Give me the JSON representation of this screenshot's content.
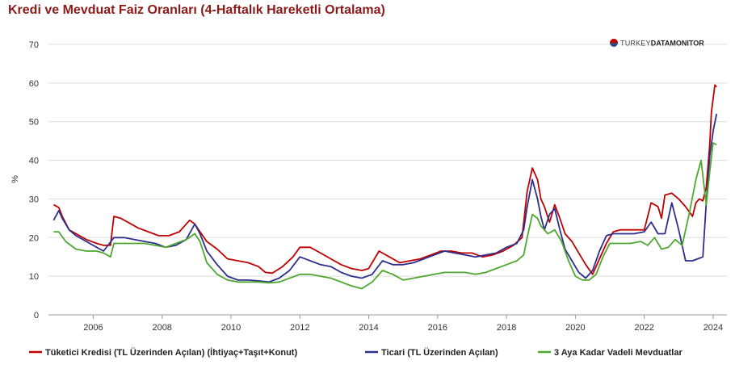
{
  "chart_data": {
    "type": "line",
    "title": "Kredi ve Mevduat Faiz Oranları (4-Haftalık Hareketli Ortalama)",
    "ylabel": "%",
    "xlabel": "",
    "xlim": [
      2004.7,
      2024.4
    ],
    "ylim": [
      0,
      70
    ],
    "xticks": [
      2006,
      2008,
      2010,
      2012,
      2014,
      2016,
      2018,
      2020,
      2022,
      2024
    ],
    "yticks": [
      0,
      10,
      20,
      30,
      40,
      50,
      60,
      70
    ],
    "grid": "horizontal",
    "legend_position": "bottom",
    "series": [
      {
        "name": "Tüketici Kredisi (TL Üzerinden Açılan) (İhtiyaç+Taşıt+Konut)",
        "color": "#c00000",
        "x": [
          2004.85,
          2005.0,
          2005.1,
          2005.3,
          2005.5,
          2005.8,
          2006.1,
          2006.3,
          2006.5,
          2006.6,
          2006.8,
          2007.0,
          2007.3,
          2007.6,
          2007.9,
          2008.2,
          2008.5,
          2008.8,
          2008.95,
          2009.1,
          2009.3,
          2009.6,
          2009.9,
          2010.2,
          2010.5,
          2010.8,
          2011.0,
          2011.2,
          2011.5,
          2011.8,
          2012.0,
          2012.3,
          2012.6,
          2012.9,
          2013.2,
          2013.5,
          2013.8,
          2014.0,
          2014.3,
          2014.6,
          2014.9,
          2015.2,
          2015.5,
          2015.8,
          2016.1,
          2016.4,
          2016.7,
          2017.0,
          2017.3,
          2017.6,
          2017.9,
          2018.2,
          2018.45,
          2018.6,
          2018.75,
          2018.9,
          2019.0,
          2019.1,
          2019.25,
          2019.4,
          2019.55,
          2019.7,
          2019.9,
          2020.1,
          2020.3,
          2020.5,
          2020.7,
          2020.9,
          2021.1,
          2021.3,
          2021.6,
          2021.9,
          2022.0,
          2022.2,
          2022.4,
          2022.5,
          2022.6,
          2022.8,
          2023.0,
          2023.2,
          2023.4,
          2023.5,
          2023.6,
          2023.7,
          2023.8,
          2023.9,
          2023.95,
          2024.05,
          2024.1
        ],
        "values": [
          28.5,
          27.8,
          25.5,
          22.0,
          21.0,
          19.5,
          18.5,
          18.0,
          18.0,
          25.5,
          25.0,
          24.0,
          22.5,
          21.5,
          20.5,
          20.5,
          21.5,
          24.5,
          23.5,
          21.5,
          19.0,
          17.0,
          14.5,
          14.0,
          13.5,
          12.5,
          11.0,
          10.8,
          12.5,
          15.0,
          17.5,
          17.5,
          16.0,
          14.5,
          13.0,
          12.0,
          11.5,
          12.0,
          16.5,
          15.0,
          13.5,
          14.0,
          14.5,
          15.5,
          16.5,
          16.5,
          16.0,
          16.0,
          15.0,
          15.5,
          16.5,
          18.0,
          20.0,
          32.0,
          38.0,
          35.0,
          30.0,
          28.0,
          24.0,
          28.5,
          25.0,
          21.0,
          19.0,
          16.0,
          13.0,
          10.5,
          14.5,
          18.5,
          21.5,
          22.0,
          22.0,
          22.0,
          22.0,
          29.0,
          28.0,
          25.0,
          31.0,
          31.5,
          30.0,
          28.0,
          25.5,
          29.0,
          30.0,
          29.5,
          33.0,
          44.0,
          52.5,
          59.5,
          59.0
        ]
      },
      {
        "name": "Ticari (TL Üzerinden Açılan)",
        "color": "#2e2e8f",
        "x": [
          2004.85,
          2005.0,
          2005.1,
          2005.3,
          2005.5,
          2005.8,
          2006.1,
          2006.3,
          2006.6,
          2006.9,
          2007.2,
          2007.5,
          2007.8,
          2008.1,
          2008.4,
          2008.7,
          2008.95,
          2009.1,
          2009.3,
          2009.6,
          2009.9,
          2010.2,
          2010.5,
          2010.8,
          2011.1,
          2011.4,
          2011.7,
          2012.0,
          2012.3,
          2012.6,
          2012.9,
          2013.2,
          2013.5,
          2013.8,
          2014.1,
          2014.4,
          2014.7,
          2015.0,
          2015.3,
          2015.6,
          2015.9,
          2016.2,
          2016.5,
          2016.8,
          2017.1,
          2017.4,
          2017.7,
          2018.0,
          2018.3,
          2018.5,
          2018.6,
          2018.75,
          2018.9,
          2019.0,
          2019.1,
          2019.25,
          2019.4,
          2019.55,
          2019.7,
          2019.9,
          2020.1,
          2020.3,
          2020.5,
          2020.7,
          2020.9,
          2021.1,
          2021.4,
          2021.7,
          2022.0,
          2022.2,
          2022.4,
          2022.6,
          2022.8,
          2023.0,
          2023.2,
          2023.4,
          2023.55,
          2023.7,
          2023.8,
          2023.9,
          2024.0,
          2024.1
        ],
        "values": [
          24.5,
          27.0,
          25.0,
          22.0,
          20.5,
          19.0,
          17.5,
          16.5,
          20.0,
          20.0,
          19.5,
          19.0,
          18.5,
          17.5,
          18.0,
          19.5,
          23.5,
          21.0,
          16.5,
          13.0,
          10.0,
          9.0,
          9.0,
          8.8,
          8.5,
          9.5,
          11.5,
          15.0,
          14.0,
          13.0,
          12.5,
          11.0,
          10.0,
          9.5,
          10.5,
          14.0,
          13.0,
          13.0,
          13.5,
          14.5,
          15.5,
          16.5,
          16.0,
          15.5,
          15.0,
          15.5,
          16.0,
          17.5,
          18.5,
          22.0,
          28.0,
          35.0,
          30.0,
          25.5,
          22.0,
          26.0,
          27.5,
          22.0,
          17.0,
          14.0,
          11.0,
          9.5,
          11.5,
          16.5,
          20.5,
          21.0,
          21.0,
          21.0,
          21.5,
          24.0,
          21.0,
          21.0,
          29.0,
          22.0,
          14.0,
          14.0,
          14.5,
          15.0,
          29.0,
          41.0,
          47.5,
          52.0
        ]
      },
      {
        "name": "3 Aya Kadar Vadeli Mevduatlar",
        "color": "#4ea72e",
        "x": [
          2004.85,
          2005.0,
          2005.2,
          2005.5,
          2005.8,
          2006.1,
          2006.3,
          2006.5,
          2006.6,
          2006.9,
          2007.2,
          2007.5,
          2007.8,
          2008.1,
          2008.4,
          2008.7,
          2008.95,
          2009.1,
          2009.3,
          2009.6,
          2009.9,
          2010.2,
          2010.5,
          2010.8,
          2011.1,
          2011.4,
          2011.7,
          2012.0,
          2012.3,
          2012.6,
          2012.9,
          2013.2,
          2013.5,
          2013.8,
          2014.1,
          2014.4,
          2014.7,
          2015.0,
          2015.3,
          2015.6,
          2015.9,
          2016.2,
          2016.5,
          2016.8,
          2017.1,
          2017.4,
          2017.7,
          2018.0,
          2018.3,
          2018.5,
          2018.6,
          2018.75,
          2018.9,
          2019.0,
          2019.2,
          2019.4,
          2019.6,
          2019.8,
          2020.0,
          2020.2,
          2020.4,
          2020.6,
          2020.8,
          2021.0,
          2021.3,
          2021.6,
          2021.9,
          2022.1,
          2022.3,
          2022.5,
          2022.7,
          2022.9,
          2023.1,
          2023.3,
          2023.5,
          2023.65,
          2023.8,
          2023.9,
          2024.0,
          2024.1
        ],
        "values": [
          21.5,
          21.5,
          19.0,
          17.0,
          16.5,
          16.5,
          16.0,
          15.0,
          18.5,
          18.5,
          18.5,
          18.5,
          18.0,
          17.5,
          18.5,
          19.5,
          21.0,
          19.0,
          13.5,
          10.5,
          9.0,
          8.5,
          8.5,
          8.5,
          8.3,
          8.5,
          9.5,
          10.5,
          10.5,
          10.0,
          9.5,
          8.5,
          7.5,
          6.8,
          8.5,
          11.5,
          10.5,
          9.0,
          9.5,
          10.0,
          10.5,
          11.0,
          11.0,
          11.0,
          10.5,
          11.0,
          12.0,
          13.0,
          14.0,
          15.5,
          20.0,
          26.0,
          25.0,
          23.0,
          21.0,
          22.0,
          19.0,
          14.0,
          10.0,
          9.0,
          9.0,
          10.5,
          15.0,
          18.5,
          18.5,
          18.5,
          19.0,
          18.0,
          20.0,
          17.0,
          17.5,
          19.5,
          18.0,
          26.0,
          35.0,
          40.0,
          28.5,
          37.0,
          44.5,
          44.0
        ]
      }
    ]
  },
  "logo": {
    "text_a": "TURKEY",
    "text_b": "DATA",
    "text_c": "MONITOR"
  }
}
